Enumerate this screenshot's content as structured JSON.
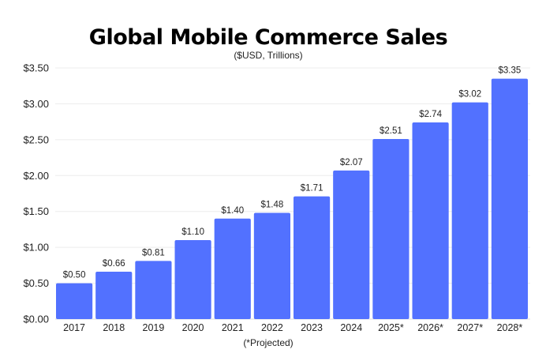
{
  "chart_data": {
    "type": "bar",
    "title": "Global Mobile Commerce Sales",
    "subtitle": "($USD, Trillions)",
    "footnote": "(*Projected)",
    "categories": [
      "2017",
      "2018",
      "2019",
      "2020",
      "2021",
      "2022",
      "2023",
      "2024",
      "2025*",
      "2026*",
      "2027*",
      "2028*"
    ],
    "values": [
      0.5,
      0.66,
      0.81,
      1.1,
      1.4,
      1.48,
      1.71,
      2.07,
      2.51,
      2.74,
      3.02,
      3.35
    ],
    "data_labels": [
      "$0.50",
      "$0.66",
      "$0.81",
      "$1.10",
      "$1.40",
      "$1.48",
      "$1.71",
      "$2.07",
      "$2.51",
      "$2.74",
      "$3.02",
      "$3.35"
    ],
    "yticks": [
      0,
      0.5,
      1.0,
      1.5,
      2.0,
      2.5,
      3.0,
      3.5
    ],
    "ytick_labels": [
      "$0.00",
      "$0.50",
      "$1.00",
      "$1.50",
      "$2.00",
      "$2.50",
      "$3.00",
      "$3.50"
    ],
    "ylim": [
      0,
      3.5
    ],
    "grid": true,
    "bar_color": "#5271FF"
  }
}
